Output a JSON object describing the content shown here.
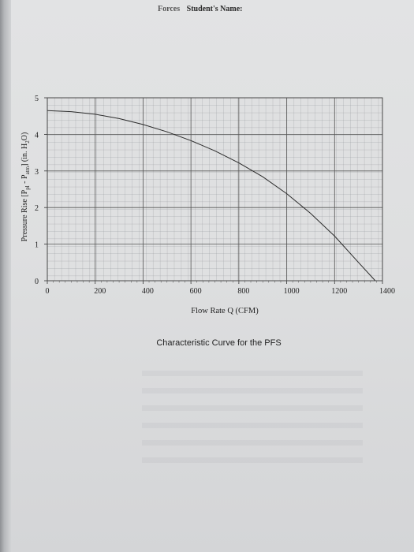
{
  "header": {
    "fragment": "Forces",
    "student_label": "Student's Name:"
  },
  "caption": "Characteristic Curve for the PFS",
  "chart_data": {
    "type": "line",
    "xlabel": "Flow Rate  Q  (CFM)",
    "ylabel_parts": {
      "a": "Pressure Rise  [P",
      "b": "pl",
      "c": " - P",
      "d": "atm",
      "e": "]  (in. H",
      "f": "2",
      "g": "O)"
    },
    "xlim": [
      0,
      1400
    ],
    "ylim": [
      0,
      5
    ],
    "x_ticks": [
      "0",
      "200",
      "400",
      "600",
      "800",
      "1000",
      "1200",
      "1400"
    ],
    "y_ticks": [
      "0",
      "1",
      "2",
      "3",
      "4",
      "5"
    ],
    "grid": true,
    "series": [
      {
        "x": [
          0,
          100,
          200,
          300,
          400,
          500,
          600,
          700,
          800,
          900,
          1000,
          1100,
          1200,
          1300,
          1370
        ],
        "y": [
          4.65,
          4.62,
          4.55,
          4.43,
          4.27,
          4.07,
          3.83,
          3.55,
          3.22,
          2.84,
          2.38,
          1.84,
          1.22,
          0.5,
          0
        ]
      }
    ]
  }
}
